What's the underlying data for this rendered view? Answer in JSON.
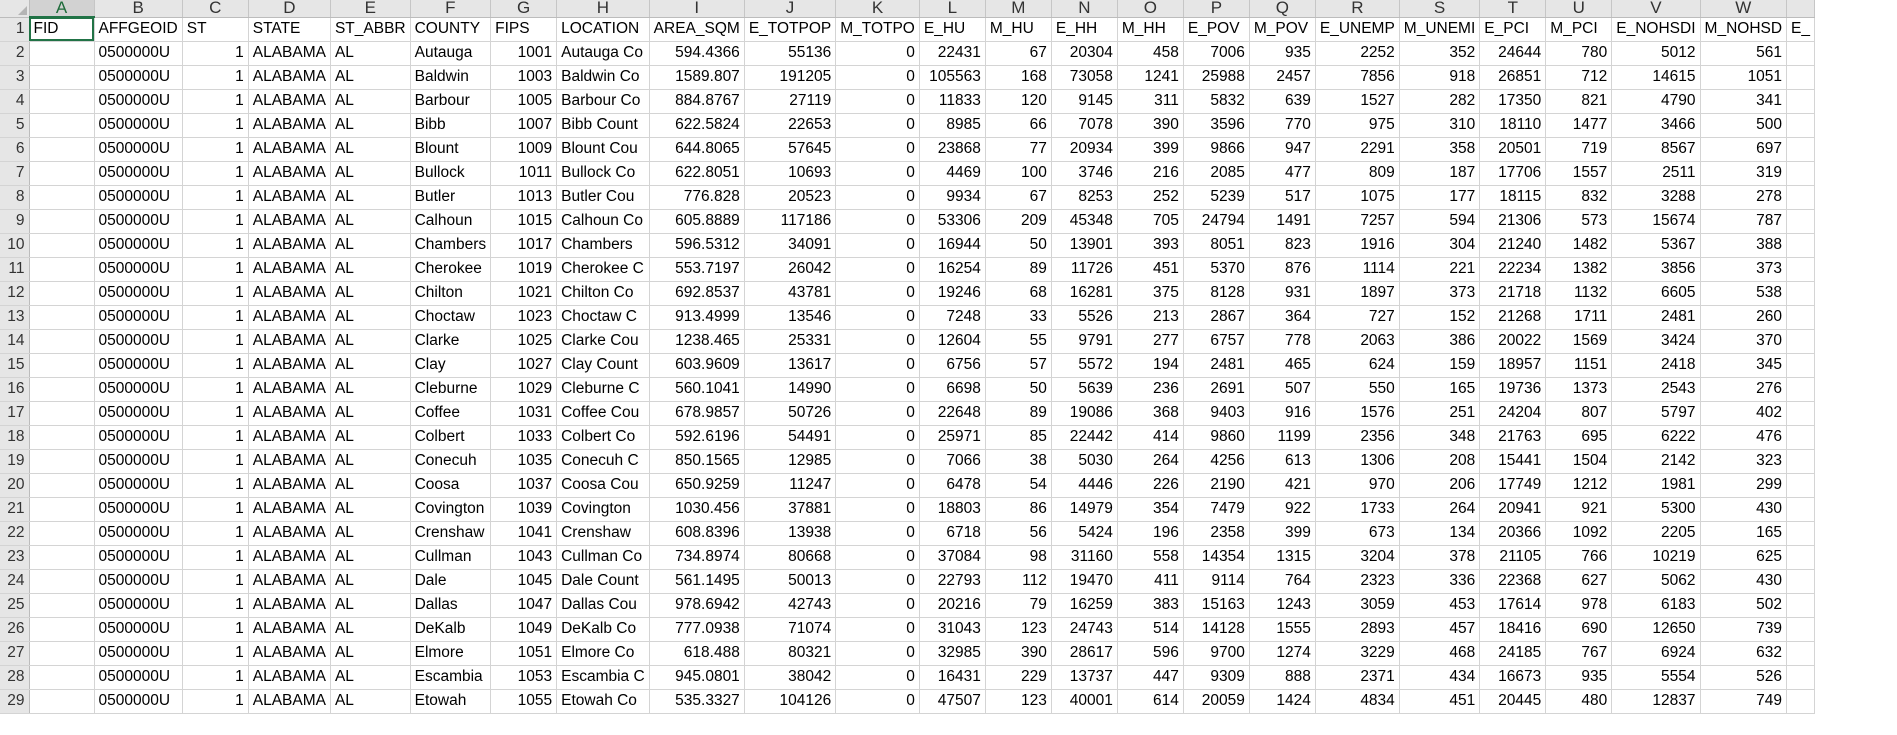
{
  "sheet": {
    "column_letters": [
      "A",
      "B",
      "C",
      "D",
      "E",
      "F",
      "G",
      "H",
      "I",
      "J",
      "K",
      "L",
      "M",
      "N",
      "O",
      "P",
      "Q",
      "R",
      "S",
      "T",
      "U",
      "V",
      "W",
      ""
    ],
    "selected_column": "A",
    "active_cell": "A1",
    "field_row": [
      "FID",
      "AFFGEOID",
      "ST",
      "STATE",
      "ST_ABBR",
      "COUNTY",
      "FIPS",
      "LOCATION",
      "AREA_SQM",
      "E_TOTPOP",
      "M_TOTPO",
      "E_HU",
      "M_HU",
      "E_HH",
      "M_HH",
      "E_POV",
      "M_POV",
      "E_UNEMP",
      "M_UNEMI",
      "E_PCI",
      "M_PCI",
      "E_NOHSDI",
      "M_NOHSD",
      "E_"
    ],
    "rows": [
      [
        "",
        "0500000U",
        "1",
        "ALABAMA",
        "AL",
        "Autauga",
        "1001",
        "Autauga Co",
        "594.4366",
        "55136",
        "0",
        "22431",
        "67",
        "20304",
        "458",
        "7006",
        "935",
        "2252",
        "352",
        "24644",
        "780",
        "5012",
        "561",
        ""
      ],
      [
        "",
        "0500000U",
        "1",
        "ALABAMA",
        "AL",
        "Baldwin",
        "1003",
        "Baldwin Co",
        "1589.807",
        "191205",
        "0",
        "105563",
        "168",
        "73058",
        "1241",
        "25988",
        "2457",
        "7856",
        "918",
        "26851",
        "712",
        "14615",
        "1051",
        ""
      ],
      [
        "",
        "0500000U",
        "1",
        "ALABAMA",
        "AL",
        "Barbour",
        "1005",
        "Barbour Co",
        "884.8767",
        "27119",
        "0",
        "11833",
        "120",
        "9145",
        "311",
        "5832",
        "639",
        "1527",
        "282",
        "17350",
        "821",
        "4790",
        "341",
        ""
      ],
      [
        "",
        "0500000U",
        "1",
        "ALABAMA",
        "AL",
        "Bibb",
        "1007",
        "Bibb Count",
        "622.5824",
        "22653",
        "0",
        "8985",
        "66",
        "7078",
        "390",
        "3596",
        "770",
        "975",
        "310",
        "18110",
        "1477",
        "3466",
        "500",
        ""
      ],
      [
        "",
        "0500000U",
        "1",
        "ALABAMA",
        "AL",
        "Blount",
        "1009",
        "Blount Cou",
        "644.8065",
        "57645",
        "0",
        "23868",
        "77",
        "20934",
        "399",
        "9866",
        "947",
        "2291",
        "358",
        "20501",
        "719",
        "8567",
        "697",
        ""
      ],
      [
        "",
        "0500000U",
        "1",
        "ALABAMA",
        "AL",
        "Bullock",
        "1011",
        "Bullock Co",
        "622.8051",
        "10693",
        "0",
        "4469",
        "100",
        "3746",
        "216",
        "2085",
        "477",
        "809",
        "187",
        "17706",
        "1557",
        "2511",
        "319",
        ""
      ],
      [
        "",
        "0500000U",
        "1",
        "ALABAMA",
        "AL",
        "Butler",
        "1013",
        "Butler Cou",
        "776.828",
        "20523",
        "0",
        "9934",
        "67",
        "8253",
        "252",
        "5239",
        "517",
        "1075",
        "177",
        "18115",
        "832",
        "3288",
        "278",
        ""
      ],
      [
        "",
        "0500000U",
        "1",
        "ALABAMA",
        "AL",
        "Calhoun",
        "1015",
        "Calhoun Co",
        "605.8889",
        "117186",
        "0",
        "53306",
        "209",
        "45348",
        "705",
        "24794",
        "1491",
        "7257",
        "594",
        "21306",
        "573",
        "15674",
        "787",
        ""
      ],
      [
        "",
        "0500000U",
        "1",
        "ALABAMA",
        "AL",
        "Chambers",
        "1017",
        "Chambers",
        "596.5312",
        "34091",
        "0",
        "16944",
        "50",
        "13901",
        "393",
        "8051",
        "823",
        "1916",
        "304",
        "21240",
        "1482",
        "5367",
        "388",
        ""
      ],
      [
        "",
        "0500000U",
        "1",
        "ALABAMA",
        "AL",
        "Cherokee",
        "1019",
        "Cherokee C",
        "553.7197",
        "26042",
        "0",
        "16254",
        "89",
        "11726",
        "451",
        "5370",
        "876",
        "1114",
        "221",
        "22234",
        "1382",
        "3856",
        "373",
        ""
      ],
      [
        "",
        "0500000U",
        "1",
        "ALABAMA",
        "AL",
        "Chilton",
        "1021",
        "Chilton Co",
        "692.8537",
        "43781",
        "0",
        "19246",
        "68",
        "16281",
        "375",
        "8128",
        "931",
        "1897",
        "373",
        "21718",
        "1132",
        "6605",
        "538",
        ""
      ],
      [
        "",
        "0500000U",
        "1",
        "ALABAMA",
        "AL",
        "Choctaw",
        "1023",
        "Choctaw C",
        "913.4999",
        "13546",
        "0",
        "7248",
        "33",
        "5526",
        "213",
        "2867",
        "364",
        "727",
        "152",
        "21268",
        "1711",
        "2481",
        "260",
        ""
      ],
      [
        "",
        "0500000U",
        "1",
        "ALABAMA",
        "AL",
        "Clarke",
        "1025",
        "Clarke Cou",
        "1238.465",
        "25331",
        "0",
        "12604",
        "55",
        "9791",
        "277",
        "6757",
        "778",
        "2063",
        "386",
        "20022",
        "1569",
        "3424",
        "370",
        ""
      ],
      [
        "",
        "0500000U",
        "1",
        "ALABAMA",
        "AL",
        "Clay",
        "1027",
        "Clay Count",
        "603.9609",
        "13617",
        "0",
        "6756",
        "57",
        "5572",
        "194",
        "2481",
        "465",
        "624",
        "159",
        "18957",
        "1151",
        "2418",
        "345",
        ""
      ],
      [
        "",
        "0500000U",
        "1",
        "ALABAMA",
        "AL",
        "Cleburne",
        "1029",
        "Cleburne C",
        "560.1041",
        "14990",
        "0",
        "6698",
        "50",
        "5639",
        "236",
        "2691",
        "507",
        "550",
        "165",
        "19736",
        "1373",
        "2543",
        "276",
        ""
      ],
      [
        "",
        "0500000U",
        "1",
        "ALABAMA",
        "AL",
        "Coffee",
        "1031",
        "Coffee Cou",
        "678.9857",
        "50726",
        "0",
        "22648",
        "89",
        "19086",
        "368",
        "9403",
        "916",
        "1576",
        "251",
        "24204",
        "807",
        "5797",
        "402",
        ""
      ],
      [
        "",
        "0500000U",
        "1",
        "ALABAMA",
        "AL",
        "Colbert",
        "1033",
        "Colbert Co",
        "592.6196",
        "54491",
        "0",
        "25971",
        "85",
        "22442",
        "414",
        "9860",
        "1199",
        "2356",
        "348",
        "21763",
        "695",
        "6222",
        "476",
        ""
      ],
      [
        "",
        "0500000U",
        "1",
        "ALABAMA",
        "AL",
        "Conecuh",
        "1035",
        "Conecuh C",
        "850.1565",
        "12985",
        "0",
        "7066",
        "38",
        "5030",
        "264",
        "4256",
        "613",
        "1306",
        "208",
        "15441",
        "1504",
        "2142",
        "323",
        ""
      ],
      [
        "",
        "0500000U",
        "1",
        "ALABAMA",
        "AL",
        "Coosa",
        "1037",
        "Coosa Cou",
        "650.9259",
        "11247",
        "0",
        "6478",
        "54",
        "4446",
        "226",
        "2190",
        "421",
        "970",
        "206",
        "17749",
        "1212",
        "1981",
        "299",
        ""
      ],
      [
        "",
        "0500000U",
        "1",
        "ALABAMA",
        "AL",
        "Covington",
        "1039",
        "Covington",
        "1030.456",
        "37881",
        "0",
        "18803",
        "86",
        "14979",
        "354",
        "7479",
        "922",
        "1733",
        "264",
        "20941",
        "921",
        "5300",
        "430",
        ""
      ],
      [
        "",
        "0500000U",
        "1",
        "ALABAMA",
        "AL",
        "Crenshaw",
        "1041",
        "Crenshaw",
        "608.8396",
        "13938",
        "0",
        "6718",
        "56",
        "5424",
        "196",
        "2358",
        "399",
        "673",
        "134",
        "20366",
        "1092",
        "2205",
        "165",
        ""
      ],
      [
        "",
        "0500000U",
        "1",
        "ALABAMA",
        "AL",
        "Cullman",
        "1043",
        "Cullman Co",
        "734.8974",
        "80668",
        "0",
        "37084",
        "98",
        "31160",
        "558",
        "14354",
        "1315",
        "3204",
        "378",
        "21105",
        "766",
        "10219",
        "625",
        ""
      ],
      [
        "",
        "0500000U",
        "1",
        "ALABAMA",
        "AL",
        "Dale",
        "1045",
        "Dale Count",
        "561.1495",
        "50013",
        "0",
        "22793",
        "112",
        "19470",
        "411",
        "9114",
        "764",
        "2323",
        "336",
        "22368",
        "627",
        "5062",
        "430",
        ""
      ],
      [
        "",
        "0500000U",
        "1",
        "ALABAMA",
        "AL",
        "Dallas",
        "1047",
        "Dallas Cou",
        "978.6942",
        "42743",
        "0",
        "20216",
        "79",
        "16259",
        "383",
        "15163",
        "1243",
        "3059",
        "453",
        "17614",
        "978",
        "6183",
        "502",
        ""
      ],
      [
        "",
        "0500000U",
        "1",
        "ALABAMA",
        "AL",
        "DeKalb",
        "1049",
        "DeKalb Co",
        "777.0938",
        "71074",
        "0",
        "31043",
        "123",
        "24743",
        "514",
        "14128",
        "1555",
        "2893",
        "457",
        "18416",
        "690",
        "12650",
        "739",
        ""
      ],
      [
        "",
        "0500000U",
        "1",
        "ALABAMA",
        "AL",
        "Elmore",
        "1051",
        "Elmore Co",
        "618.488",
        "80321",
        "0",
        "32985",
        "390",
        "28617",
        "596",
        "9700",
        "1274",
        "3229",
        "468",
        "24185",
        "767",
        "6924",
        "632",
        ""
      ],
      [
        "",
        "0500000U",
        "1",
        "ALABAMA",
        "AL",
        "Escambia",
        "1053",
        "Escambia C",
        "945.0801",
        "38042",
        "0",
        "16431",
        "229",
        "13737",
        "447",
        "9309",
        "888",
        "2371",
        "434",
        "16673",
        "935",
        "5554",
        "526",
        ""
      ],
      [
        "",
        "0500000U",
        "1",
        "ALABAMA",
        "AL",
        "Etowah",
        "1055",
        "Etowah Co",
        "535.3327",
        "104126",
        "0",
        "47507",
        "123",
        "40001",
        "614",
        "20059",
        "1424",
        "4834",
        "451",
        "20445",
        "480",
        "12837",
        "749",
        ""
      ]
    ]
  }
}
